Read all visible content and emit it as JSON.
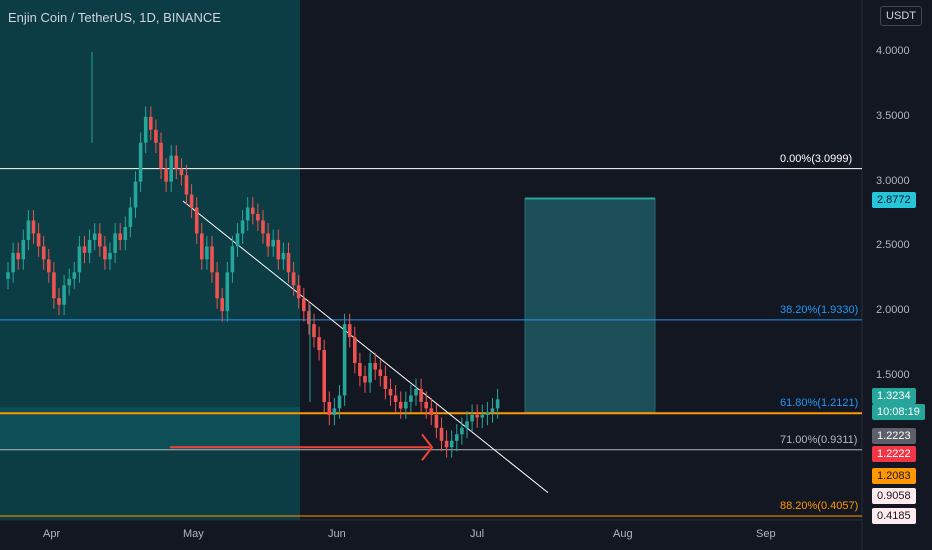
{
  "header": {
    "symbol_title": "Enjin Coin / TetherUS, 1D, BINANCE",
    "currency": "USDT"
  },
  "price_axis": {
    "ticks": [
      "4.0000",
      "3.5000",
      "3.0000",
      "2.5000",
      "2.0000",
      "1.5000"
    ]
  },
  "time_axis": {
    "ticks": [
      "Apr",
      "May",
      "Jun",
      "Jul",
      "Aug",
      "Sep"
    ]
  },
  "fib_levels": [
    {
      "label": "0.00%(3.0999)",
      "price": 3.0999,
      "color": "#ffffff"
    },
    {
      "label": "38.20%(1.9330)",
      "price": 1.933,
      "color": "#2196f3"
    },
    {
      "label": "61.80%(1.2121)",
      "price": 1.2121,
      "color": "#2196f3"
    },
    {
      "label": "71.00%(0.9311)",
      "price": 0.9311,
      "color": "#b2b5be"
    },
    {
      "label": "88.20%(0.4057)",
      "price": 0.4057,
      "color": "#ff9800"
    }
  ],
  "price_tags": [
    {
      "label": "2.8772",
      "color": "#26c6da",
      "text_color": "#131722"
    },
    {
      "label": "1.3234",
      "color": "#26a69a",
      "text_color": "#ffffff"
    },
    {
      "label": "10:08:19",
      "color": "#26a69a",
      "text_color": "#ffffff"
    },
    {
      "label": "1.2223",
      "color": "#5d606b",
      "text_color": "#ffffff"
    },
    {
      "label": "1.2222",
      "color": "#f23645",
      "text_color": "#ffffff"
    },
    {
      "label": "1.2083",
      "color": "#ff9800",
      "text_color": "#131722"
    },
    {
      "label": "0.9058",
      "color": "#ffebee",
      "text_color": "#131722"
    },
    {
      "label": "0.4185",
      "color": "#ffebee",
      "text_color": "#131722"
    }
  ],
  "colors": {
    "background": "#131722",
    "up": "#26a69a",
    "down": "#ef5350",
    "teal_zone": "#0c3c44",
    "target_box": "#1c4f57",
    "orange_line": "#ff9800",
    "red_arrow": "#f44336"
  },
  "chart_data": {
    "type": "candlestick",
    "title": "Enjin Coin / TetherUS, 1D, BINANCE",
    "yrange": [
      0.4,
      4.2
    ],
    "closes": [
      2.3,
      2.45,
      2.4,
      2.55,
      2.7,
      2.6,
      2.5,
      2.4,
      2.3,
      2.1,
      2.05,
      2.2,
      2.25,
      2.3,
      2.5,
      2.45,
      2.55,
      2.6,
      2.5,
      2.4,
      2.45,
      2.6,
      2.55,
      2.65,
      2.8,
      3.0,
      3.3,
      3.5,
      3.4,
      3.3,
      3.1,
      3.0,
      3.2,
      3.1,
      3.05,
      2.9,
      2.8,
      2.6,
      2.4,
      2.5,
      2.3,
      2.1,
      2.0,
      2.3,
      2.5,
      2.6,
      2.7,
      2.8,
      2.75,
      2.7,
      2.6,
      2.5,
      2.55,
      2.4,
      2.45,
      2.3,
      2.2,
      2.1,
      2.0,
      1.9,
      1.8,
      1.7,
      1.3,
      1.2,
      1.25,
      1.35,
      1.9,
      1.8,
      1.6,
      1.5,
      1.45,
      1.6,
      1.55,
      1.5,
      1.4,
      1.35,
      1.3,
      1.25,
      1.3,
      1.35,
      1.4,
      1.3,
      1.25,
      1.2,
      1.1,
      1.0,
      0.95,
      1.0,
      1.05,
      1.1,
      1.15,
      1.2,
      1.18,
      1.2,
      1.22,
      1.25,
      1.32
    ]
  }
}
